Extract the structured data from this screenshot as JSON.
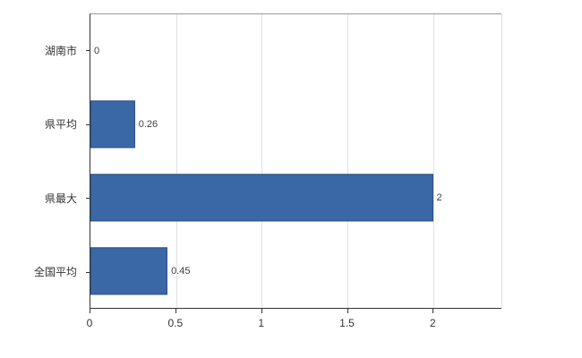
{
  "chart_data": {
    "type": "bar",
    "orientation": "horizontal",
    "title": "",
    "categories": [
      "湖南市",
      "県平均",
      "県最大",
      "全国平均"
    ],
    "values": [
      0,
      0.26,
      2,
      0.45
    ],
    "value_labels": [
      "0",
      "0.26",
      "2",
      "0.45"
    ],
    "xlim": [
      0,
      2.4
    ],
    "xticks": [
      0,
      0.5,
      1,
      1.5,
      2
    ],
    "xtick_labels": [
      "0",
      "0.5",
      "1",
      "1.5",
      "2"
    ],
    "bar_color": "#3a67a5",
    "bar_border_color": "#2d5283",
    "grid": true,
    "legend": "none"
  }
}
